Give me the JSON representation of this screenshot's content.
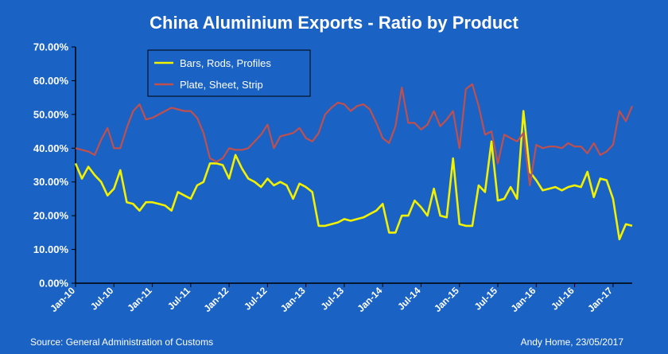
{
  "chart_data": {
    "type": "line",
    "title": "China Aluminium  Exports  - Ratio by Product",
    "source": "Source: General  Administration of Customs",
    "credit": "Andy Home, 23/05/2017",
    "ylim": [
      0,
      70
    ],
    "y_ticks": [
      "0.00%",
      "10.00%",
      "20.00%",
      "30.00%",
      "40.00%",
      "50.00%",
      "60.00%",
      "70.00%"
    ],
    "x_ticks": [
      "Jan-10",
      "Jul-10",
      "Jan-11",
      "Jul-11",
      "Jan-12",
      "Jul-12",
      "Jan-13",
      "Jul-13",
      "Jan-14",
      "Jul-14",
      "Jan-15",
      "Jul-15",
      "Jan-16",
      "Jul-16",
      "Jan-17"
    ],
    "x_start": "Jan-10",
    "x_end": "May-17",
    "legend_position": "top-left",
    "grid": false,
    "series": [
      {
        "name": "Bars, Rods, Profiles",
        "color": "#f2f200",
        "values": [
          35.5,
          31,
          34.5,
          32,
          30,
          26,
          28,
          33.5,
          24,
          23.5,
          21.5,
          24,
          24,
          23.5,
          23,
          21.5,
          27,
          26,
          25,
          29,
          30,
          35.5,
          35.5,
          35,
          31,
          38,
          34,
          31,
          30,
          28.5,
          31,
          29,
          30,
          29,
          25,
          29.5,
          28.5,
          27,
          17,
          17,
          17.5,
          18,
          19,
          18.5,
          19,
          19.5,
          20.5,
          21.5,
          23.5,
          15,
          15,
          20,
          20,
          24.5,
          22.5,
          20,
          28,
          20,
          19.5,
          37,
          17.5,
          17,
          17,
          29,
          27,
          42,
          24.5,
          25,
          28.5,
          25,
          51,
          33,
          30.5,
          27.5,
          28,
          28.5,
          27.5,
          28.5,
          29,
          28.5,
          33,
          25.5,
          31,
          30.5,
          25,
          13,
          17.5,
          17
        ]
      },
      {
        "name": "Plate, Sheet, Strip",
        "color": "#c0504d",
        "values": [
          40,
          39.5,
          39,
          38,
          42.5,
          46,
          40,
          40,
          46,
          51,
          53,
          48.5,
          49,
          50,
          51,
          52,
          51.5,
          51,
          51,
          49,
          44.5,
          37,
          36,
          37,
          40,
          39.5,
          39.5,
          40,
          42,
          44,
          47,
          40,
          43.5,
          44,
          44.5,
          46,
          43,
          42,
          44.5,
          50,
          52,
          53.5,
          53,
          51,
          52.5,
          53,
          51.5,
          47.5,
          43,
          41.5,
          46.5,
          58,
          47.5,
          47.5,
          45.5,
          47,
          51,
          46.5,
          48.5,
          51,
          40,
          57.5,
          59,
          52.5,
          44,
          45,
          35.5,
          44,
          43,
          42,
          44.5,
          29,
          41,
          40,
          40.5,
          40.5,
          40,
          41.5,
          40.5,
          40.5,
          38.5,
          41.5,
          38,
          39,
          41,
          51,
          48,
          52.5
        ]
      }
    ]
  }
}
